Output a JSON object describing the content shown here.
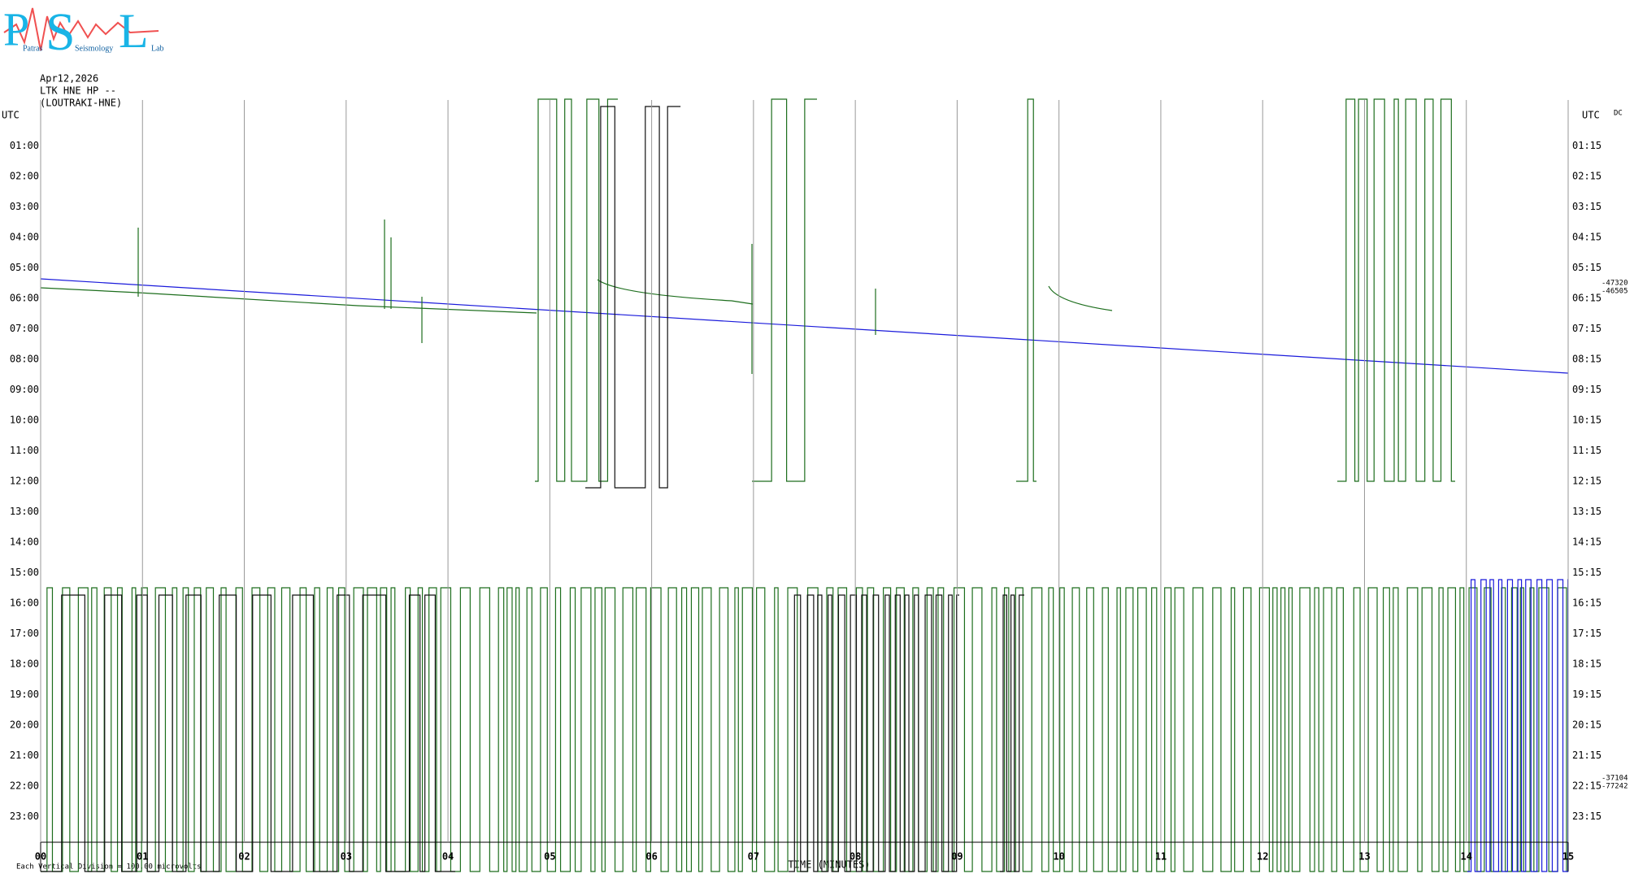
{
  "logo": {
    "letters": [
      "P",
      "S",
      "L"
    ],
    "words": [
      "Patras",
      "Seismology",
      "Lab"
    ]
  },
  "header": {
    "date": "Apr12,2026",
    "station": "LTK HNE HP --",
    "site": "(LOUTRAKI-HNE)"
  },
  "chart_data": {
    "type": "helicorder",
    "left_labels": [
      "UTC",
      "01:00",
      "02:00",
      "03:00",
      "04:00",
      "05:00",
      "06:00",
      "07:00",
      "08:00",
      "09:00",
      "10:00",
      "11:00",
      "12:00",
      "13:00",
      "14:00",
      "15:00",
      "16:00",
      "17:00",
      "18:00",
      "19:00",
      "20:00",
      "21:00",
      "22:00",
      "23:00"
    ],
    "right_labels": [
      "UTC",
      "01:15",
      "02:15",
      "03:15",
      "04:15",
      "05:15",
      "06:15",
      "07:15",
      "08:15",
      "09:15",
      "10:15",
      "11:15",
      "12:15",
      "13:15",
      "14:15",
      "15:15",
      "16:15",
      "17:15",
      "18:15",
      "19:15",
      "20:15",
      "21:15",
      "22:15",
      "23:15"
    ],
    "xlim": [
      0,
      15
    ],
    "xticks": [
      {
        "value": 0,
        "label": "00"
      },
      {
        "value": 1,
        "label": "01"
      },
      {
        "value": 2,
        "label": "02"
      },
      {
        "value": 3,
        "label": "03"
      },
      {
        "value": 4,
        "label": "04"
      },
      {
        "value": 5,
        "label": "05"
      },
      {
        "value": 6,
        "label": "06"
      },
      {
        "value": 7,
        "label": "07"
      },
      {
        "value": 8,
        "label": "08"
      },
      {
        "value": 9,
        "label": "09"
      },
      {
        "value": 10,
        "label": "10"
      },
      {
        "value": 11,
        "label": "11"
      },
      {
        "value": 12,
        "label": "12"
      },
      {
        "value": 13,
        "label": "13"
      },
      {
        "value": 14,
        "label": "14"
      },
      {
        "value": 15,
        "label": "15"
      }
    ],
    "xlabel": "TIME (MINUTES)",
    "footer": "Each Vertical Division = 100.00 microvolts",
    "dc_label": "DC",
    "dc_values": [
      "-47320",
      "-46505",
      "-37104",
      "-77242"
    ]
  }
}
